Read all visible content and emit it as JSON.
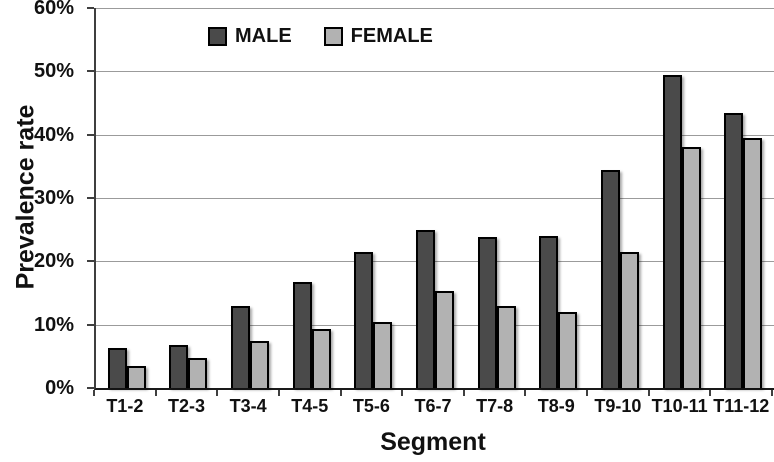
{
  "chart_data": {
    "type": "bar",
    "title": "",
    "xlabel": "Segment",
    "ylabel": "Prevalence rate",
    "ylim": [
      0,
      60
    ],
    "grid": "horizontal",
    "legend_position": "top-left-inside",
    "yticks": {
      "values": [
        0,
        10,
        20,
        30,
        40,
        50,
        60
      ],
      "labels": [
        "0%",
        "10%",
        "20%",
        "30%",
        "40%",
        "50%",
        "60%"
      ]
    },
    "categories": [
      "T1-2",
      "T2-3",
      "T3-4",
      "T4-5",
      "T5-6",
      "T6-7",
      "T7-8",
      "T8-9",
      "T9-10",
      "T10-11",
      "T11-12"
    ],
    "series": [
      {
        "name": "MALE",
        "color": "#4a4a4a",
        "values": [
          6.3,
          6.8,
          13.0,
          16.8,
          21.5,
          24.9,
          23.9,
          24.0,
          34.5,
          49.5,
          43.5
        ]
      },
      {
        "name": "FEMALE",
        "color": "#b2b2b2",
        "values": [
          3.5,
          4.8,
          7.4,
          9.3,
          10.5,
          15.3,
          13.0,
          12.0,
          21.5,
          38.0,
          39.5
        ]
      }
    ]
  },
  "colors": {
    "bar_border": "#000000",
    "gridline": "#9b9b9b",
    "axis": "#3f3f3f",
    "text": "#111111",
    "background": "#ffffff"
  }
}
